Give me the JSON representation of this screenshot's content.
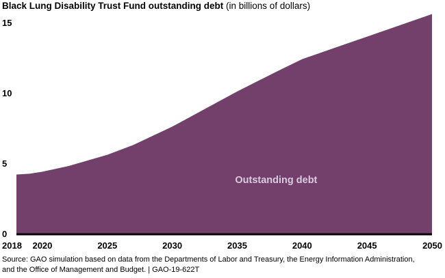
{
  "header": {
    "title_bold": "Black Lung Disability Trust Fund outstanding debt",
    "title_units": "(in billions of dollars)"
  },
  "footer": {
    "source_line1": "Source: GAO simulation based on data from the Departments of Labor and Treasury, the Energy Information Administration,",
    "source_line2": "and the Office of Management and Budget.  |  GAO-19-622T"
  },
  "colors": {
    "area": "#733f6b",
    "baseline": "#000000"
  },
  "chart_data": {
    "type": "area",
    "title": "Black Lung Disability Trust Fund outstanding debt (in billions of dollars)",
    "xlabel": "",
    "ylabel": "",
    "xlim": [
      2018,
      2050
    ],
    "ylim": [
      0,
      15
    ],
    "x_ticks": [
      2018,
      2020,
      2025,
      2030,
      2035,
      2040,
      2045,
      2050
    ],
    "y_ticks": [
      0,
      5,
      10,
      15
    ],
    "grid": false,
    "series": [
      {
        "name": "Outstanding debt",
        "x": [
          2018,
          2019,
          2020,
          2022,
          2025,
          2027,
          2030,
          2033,
          2035,
          2038,
          2040,
          2045,
          2050
        ],
        "y": [
          4.2,
          4.25,
          4.4,
          4.8,
          5.6,
          6.3,
          7.6,
          9.1,
          10.1,
          11.5,
          12.4,
          14.0,
          15.6
        ]
      }
    ],
    "annotations": [
      {
        "text": "Outstanding debt",
        "x": 2038,
        "y": 3.6
      }
    ]
  }
}
